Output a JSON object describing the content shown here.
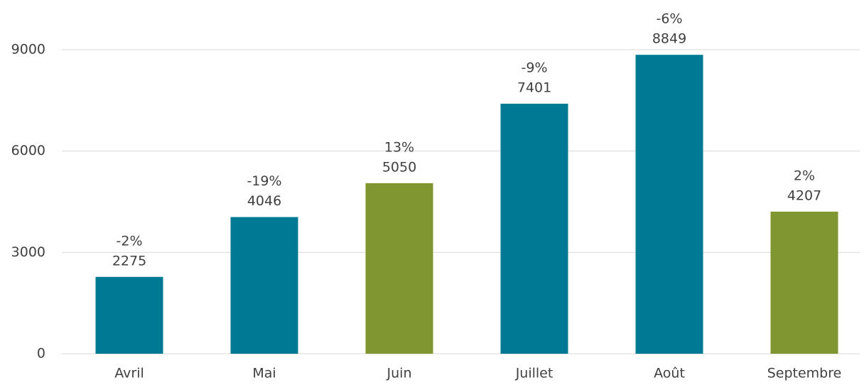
{
  "chart_data": {
    "type": "bar",
    "categories": [
      "Avril",
      "Mai",
      "Juin",
      "Juillet",
      "Août",
      "Septembre"
    ],
    "values": [
      2275,
      4046,
      5050,
      7401,
      8849,
      4207
    ],
    "annotations": [
      "-2%",
      "-19%",
      "13%",
      "-9%",
      "-6%",
      "2%"
    ],
    "colors": [
      "#007a94",
      "#007a94",
      "#7f9631",
      "#007a94",
      "#007a94",
      "#7f9631"
    ],
    "ylim": [
      0,
      9000
    ],
    "yticks": [
      0,
      3000,
      6000,
      9000
    ],
    "grid": true
  }
}
